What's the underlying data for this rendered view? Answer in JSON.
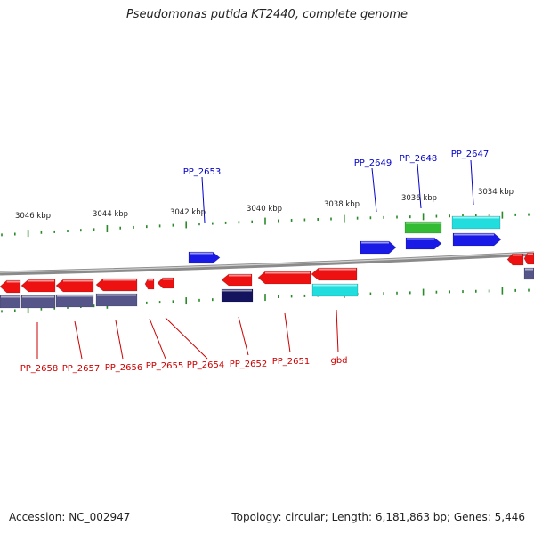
{
  "title": "Pseudomonas putida KT2440, complete genome",
  "footer": {
    "accession": "Accession: NC_002947",
    "summary": "Topology: circular; Length: 6,181,863 bp; Genes: 5,446"
  },
  "colors": {
    "red": "#ee1111",
    "blue": "#1a1ae6",
    "green": "#33bb33",
    "cyan": "#22dddd",
    "slate": "#55558a",
    "navy": "#14145e",
    "tick": "#2a8a2a",
    "backbone": "#8a8a8a",
    "label_red": "#cc0000",
    "label_blue": "#0000cc"
  },
  "scale_labels": [
    "3046 kbp",
    "3044 kbp",
    "3042 kbp",
    "3040 kbp",
    "3038 kbp",
    "3036 kbp",
    "3034 kbp"
  ],
  "upper_labels": [
    "PP_2653",
    "PP_2649",
    "PP_2648",
    "PP_2647"
  ],
  "lower_labels": [
    "PP_2658",
    "PP_2657",
    "PP_2656",
    "PP_2655",
    "PP_2654",
    "PP_2652",
    "PP_2651",
    "gbd"
  ]
}
